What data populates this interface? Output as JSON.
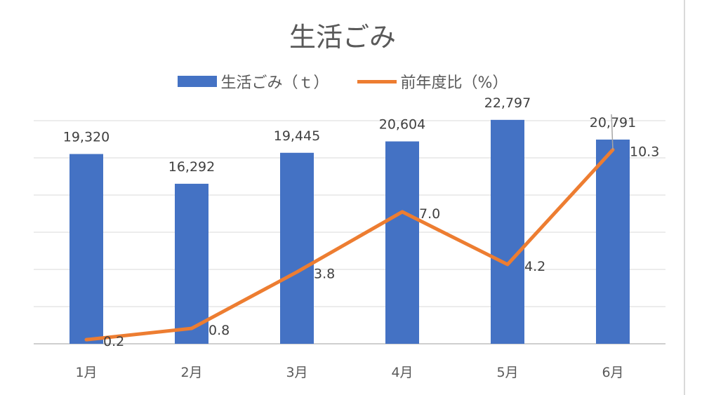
{
  "chart_data": {
    "type": "bar",
    "title": "生活ごみ",
    "categories": [
      "1月",
      "2月",
      "3月",
      "4月",
      "5月",
      "6月"
    ],
    "series": [
      {
        "name": "生活ごみ（ｔ）",
        "type": "bar",
        "values": [
          19320,
          16292,
          19445,
          20604,
          22797,
          20791
        ],
        "labels": [
          "19,320",
          "16,292",
          "19,445",
          "20,604",
          "22,797",
          "20,791"
        ],
        "color": "#4472c4"
      },
      {
        "name": "前年度比（%）",
        "type": "line",
        "values": [
          0.2,
          0.8,
          3.8,
          7.0,
          4.2,
          10.3
        ],
        "labels": [
          "0.2",
          "0.8",
          "3.8",
          "7.0",
          "4.2",
          "10.3"
        ],
        "color": "#ed7d31"
      }
    ],
    "legend_position": "top",
    "grid": true
  }
}
